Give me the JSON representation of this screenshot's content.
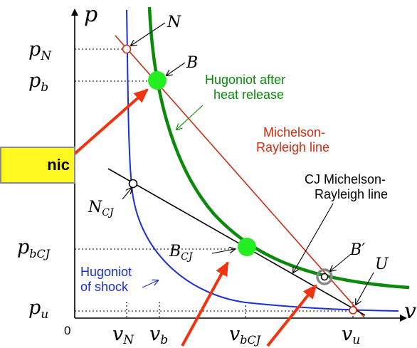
{
  "axes": {
    "y_label": "p",
    "x_label": "v",
    "origin": "0"
  },
  "y_ticks": [
    {
      "base": "p",
      "sub": "N"
    },
    {
      "base": "p",
      "sub": "b"
    },
    {
      "base": "p",
      "sub": "bCJ"
    },
    {
      "base": "p",
      "sub": "u"
    }
  ],
  "x_ticks": [
    {
      "base": "v",
      "sub": "N"
    },
    {
      "base": "v",
      "sub": "b"
    },
    {
      "base": "v",
      "sub": "bCJ"
    },
    {
      "base": "v",
      "sub": "u"
    }
  ],
  "points": {
    "N": "N",
    "B": "B",
    "N_CJ": {
      "base": "N",
      "sub": "CJ"
    },
    "B_CJ": {
      "base": "B",
      "sub": "CJ"
    },
    "B_prime": "B′",
    "U": "U"
  },
  "labels": {
    "hugoniot_after_line1": "Hugoniot after",
    "hugoniot_after_line2": "heat release",
    "michelson_line1": "Michelson-",
    "michelson_line2": "Rayleigh line",
    "cj_line1": "CJ Michelson-",
    "cj_line2": "Rayleigh line",
    "hugoniot_shock_line1": "Hugoniot",
    "hugoniot_shock_line2": "of shock"
  },
  "callout_text": "nic",
  "colors": {
    "hugoniot_after": "#0a8a0a",
    "michelson": "#d42a10",
    "cj_line": "#000000",
    "hugoniot_shock": "#1a2fd8",
    "point_fill": "#22ee22",
    "arrow": "#f2330f",
    "callout_bg": "#fff820"
  }
}
